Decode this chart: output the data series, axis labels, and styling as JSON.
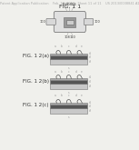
{
  "bg_color": "#f0f0ec",
  "header_text": "Patent Application Publication    Feb. 14, 2013   Sheet 11 of 11    US 2013/0038841 A1",
  "header_fontsize": 2.5,
  "fig11_label": "FIG. 1 1",
  "fig12a_label": "FIG. 1 2(a)",
  "fig12b_label": "FIG. 1 2(b)",
  "fig12c_label": "FIG. 1 2(c)",
  "label_fontsize": 4.5,
  "num_fontsize": 2.5,
  "edge_color": "#666666",
  "dark_layer_color": "#555555",
  "mid_layer_color": "#888888",
  "light_layer_color": "#cccccc",
  "substrate_color": "#aaaaaa",
  "tube_color": "#dddddd",
  "inner_rect_color": "#999999",
  "text_color": "#333333",
  "gray_text": "#999999"
}
